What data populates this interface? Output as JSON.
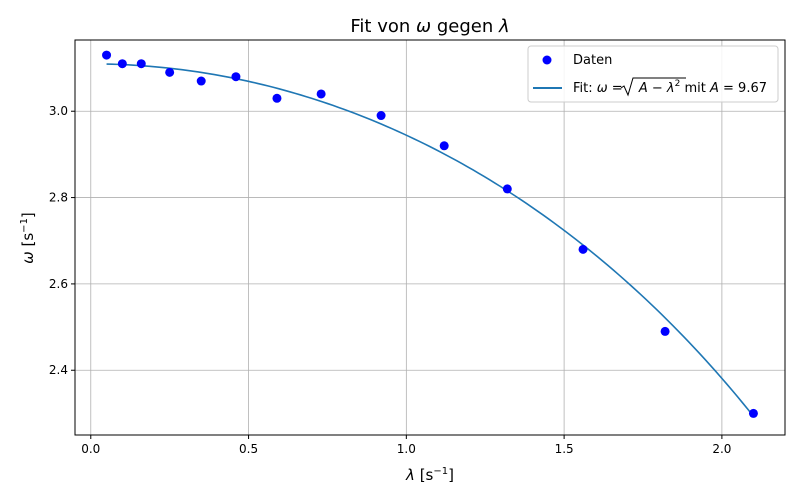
{
  "chart_data": {
    "type": "scatter",
    "title": "Fit von ω gegen λ",
    "title_parts": {
      "prefix": "Fit von ",
      "sym1": "ω",
      "middle": " gegen ",
      "sym2": "λ"
    },
    "xlabel": "λ [s⁻¹]",
    "xlabel_parts": {
      "sym": "λ",
      "unit": " [s",
      "exp": "−1",
      "close": "]"
    },
    "ylabel": "ω [s⁻¹]",
    "ylabel_parts": {
      "sym": "ω",
      "unit": " [s",
      "exp": "−1",
      "close": "]"
    },
    "xlim": [
      -0.05,
      2.2
    ],
    "ylim": [
      2.25,
      3.165
    ],
    "xticks": [
      0.0,
      0.5,
      1.0,
      1.5,
      2.0
    ],
    "xtick_labels": [
      "0.0",
      "0.5",
      "1.0",
      "1.5",
      "2.0"
    ],
    "yticks": [
      2.4,
      2.6,
      2.8,
      3.0
    ],
    "ytick_labels": [
      "2.4",
      "2.6",
      "2.8",
      "3.0"
    ],
    "grid": true,
    "legend_position": "top-right",
    "series": [
      {
        "name": "Daten",
        "kind": "scatter",
        "color": "#0000ff",
        "x": [
          0.05,
          0.1,
          0.16,
          0.25,
          0.35,
          0.46,
          0.59,
          0.73,
          0.92,
          1.12,
          1.32,
          1.56,
          1.82,
          2.1
        ],
        "y": [
          3.13,
          3.11,
          3.11,
          3.09,
          3.07,
          3.08,
          3.03,
          3.04,
          2.99,
          2.92,
          2.82,
          2.68,
          2.49,
          2.3
        ]
      },
      {
        "name": "Fit: ω = √(A − λ²) mit A = 9.67",
        "kind": "line",
        "color": "#1f77b4",
        "model": "sqrt(A - x^2)",
        "A": 9.67,
        "x_range": [
          0.05,
          2.1
        ]
      }
    ],
    "legend_fit_parts": {
      "prefix": "Fit: ",
      "omega": "ω",
      "eq": " = ",
      "radicand_a": "A",
      "minus": " − ",
      "lambda": "λ",
      "sq": "2",
      "mit": " mit ",
      "a_sym": "A",
      "a_eq": " = 9.67"
    }
  }
}
